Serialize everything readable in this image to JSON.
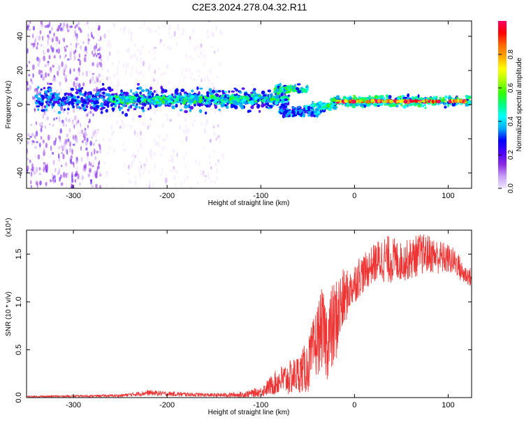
{
  "title": "C2E3.2024.278.04.32.R11",
  "chart_data": [
    {
      "type": "heatmap",
      "xlabel": "Height of straight line (km)",
      "ylabel": "Frequency (Hz)",
      "xlim": [
        -350,
        125
      ],
      "ylim": [
        -49,
        49
      ],
      "xticks": [
        -300,
        -200,
        -100,
        0,
        100
      ],
      "yticks": [
        -40,
        -20,
        0,
        20,
        40
      ],
      "colorbar": {
        "label": "Normalized spectral amplitude",
        "range": [
          0.0,
          1.0
        ],
        "ticks": [
          "0.0",
          "0.2",
          "0.4",
          "0.6",
          "0.8"
        ],
        "colormap": [
          "#f2e6ff",
          "#c9a0f7",
          "#8a2be2",
          "#4b00ff",
          "#0000ff",
          "#00aaff",
          "#00ffff",
          "#00ff80",
          "#33ff00",
          "#aaff00",
          "#ffff00",
          "#ffaa00",
          "#ff6600",
          "#ff0000",
          "#ff0066"
        ]
      },
      "regions": [
        {
          "x_range": [
            -350,
            -270
          ],
          "freq_range": [
            -49,
            49
          ],
          "amplitude": 0.15,
          "note": "scattered noise"
        },
        {
          "x_range": [
            -270,
            -140
          ],
          "freq_range": [
            -49,
            49
          ],
          "amplitude": 0.05,
          "note": "sparse faint noise"
        },
        {
          "x_range": [
            -340,
            -70
          ],
          "freq_center": 3,
          "freq_halfwidth": 9,
          "amplitude": 0.35
        },
        {
          "x_range": [
            -260,
            -70
          ],
          "freq_center": 3,
          "freq_halfwidth": 3,
          "amplitude": 0.5
        },
        {
          "x_range": [
            -85,
            -50
          ],
          "freq_center": 9,
          "freq_halfwidth": 3,
          "amplitude": 0.5
        },
        {
          "x_range": [
            -80,
            -35
          ],
          "freq_center": -4,
          "freq_halfwidth": 4,
          "amplitude": 0.4
        },
        {
          "x_range": [
            -45,
            -20
          ],
          "freq_center": -1,
          "freq_halfwidth": 3,
          "amplitude": 0.5
        },
        {
          "x_range": [
            -25,
            125
          ],
          "freq_center": 2,
          "freq_halfwidth": 4,
          "amplitude": 0.5
        },
        {
          "x_range": [
            -20,
            120
          ],
          "freq_center": 2,
          "freq_halfwidth": 0.7,
          "amplitude": 0.95
        }
      ]
    },
    {
      "type": "line",
      "xlabel": "Height of straight line (km)",
      "ylabel": "SNR (10 * v/v)",
      "y_multiplier": "(x10⁴)",
      "xlim": [
        -350,
        125
      ],
      "ylim": [
        0,
        1.75
      ],
      "xticks": [
        -300,
        -200,
        -100,
        0,
        100
      ],
      "yticks": [
        "0.0",
        "0.5",
        "1.0",
        "1.5"
      ],
      "series": [
        {
          "color": "#ee3333",
          "x": [
            -350,
            -300,
            -250,
            -220,
            -200,
            -150,
            -120,
            -100,
            -90,
            -80,
            -70,
            -60,
            -50,
            -45,
            -40,
            -35,
            -30,
            -25,
            -20,
            -15,
            -10,
            -5,
            0,
            5,
            10,
            20,
            30,
            40,
            50,
            60,
            70,
            80,
            90,
            100,
            110,
            115,
            120,
            125
          ],
          "mean": [
            0.01,
            0.015,
            0.02,
            0.05,
            0.04,
            0.025,
            0.03,
            0.06,
            0.12,
            0.18,
            0.2,
            0.25,
            0.32,
            0.45,
            0.6,
            0.72,
            0.6,
            0.68,
            0.8,
            0.95,
            1.05,
            1.12,
            1.2,
            1.27,
            1.3,
            1.4,
            1.45,
            1.44,
            1.42,
            1.45,
            1.5,
            1.5,
            1.47,
            1.45,
            1.4,
            1.3,
            1.28,
            1.25
          ],
          "spread": [
            0.01,
            0.01,
            0.015,
            0.03,
            0.025,
            0.02,
            0.03,
            0.05,
            0.1,
            0.15,
            0.18,
            0.2,
            0.28,
            0.33,
            0.38,
            0.42,
            0.42,
            0.48,
            0.45,
            0.38,
            0.3,
            0.2,
            0.22,
            0.22,
            0.2,
            0.2,
            0.25,
            0.25,
            0.2,
            0.22,
            0.22,
            0.2,
            0.18,
            0.16,
            0.14,
            0.12,
            0.1,
            0.1
          ]
        }
      ]
    }
  ]
}
